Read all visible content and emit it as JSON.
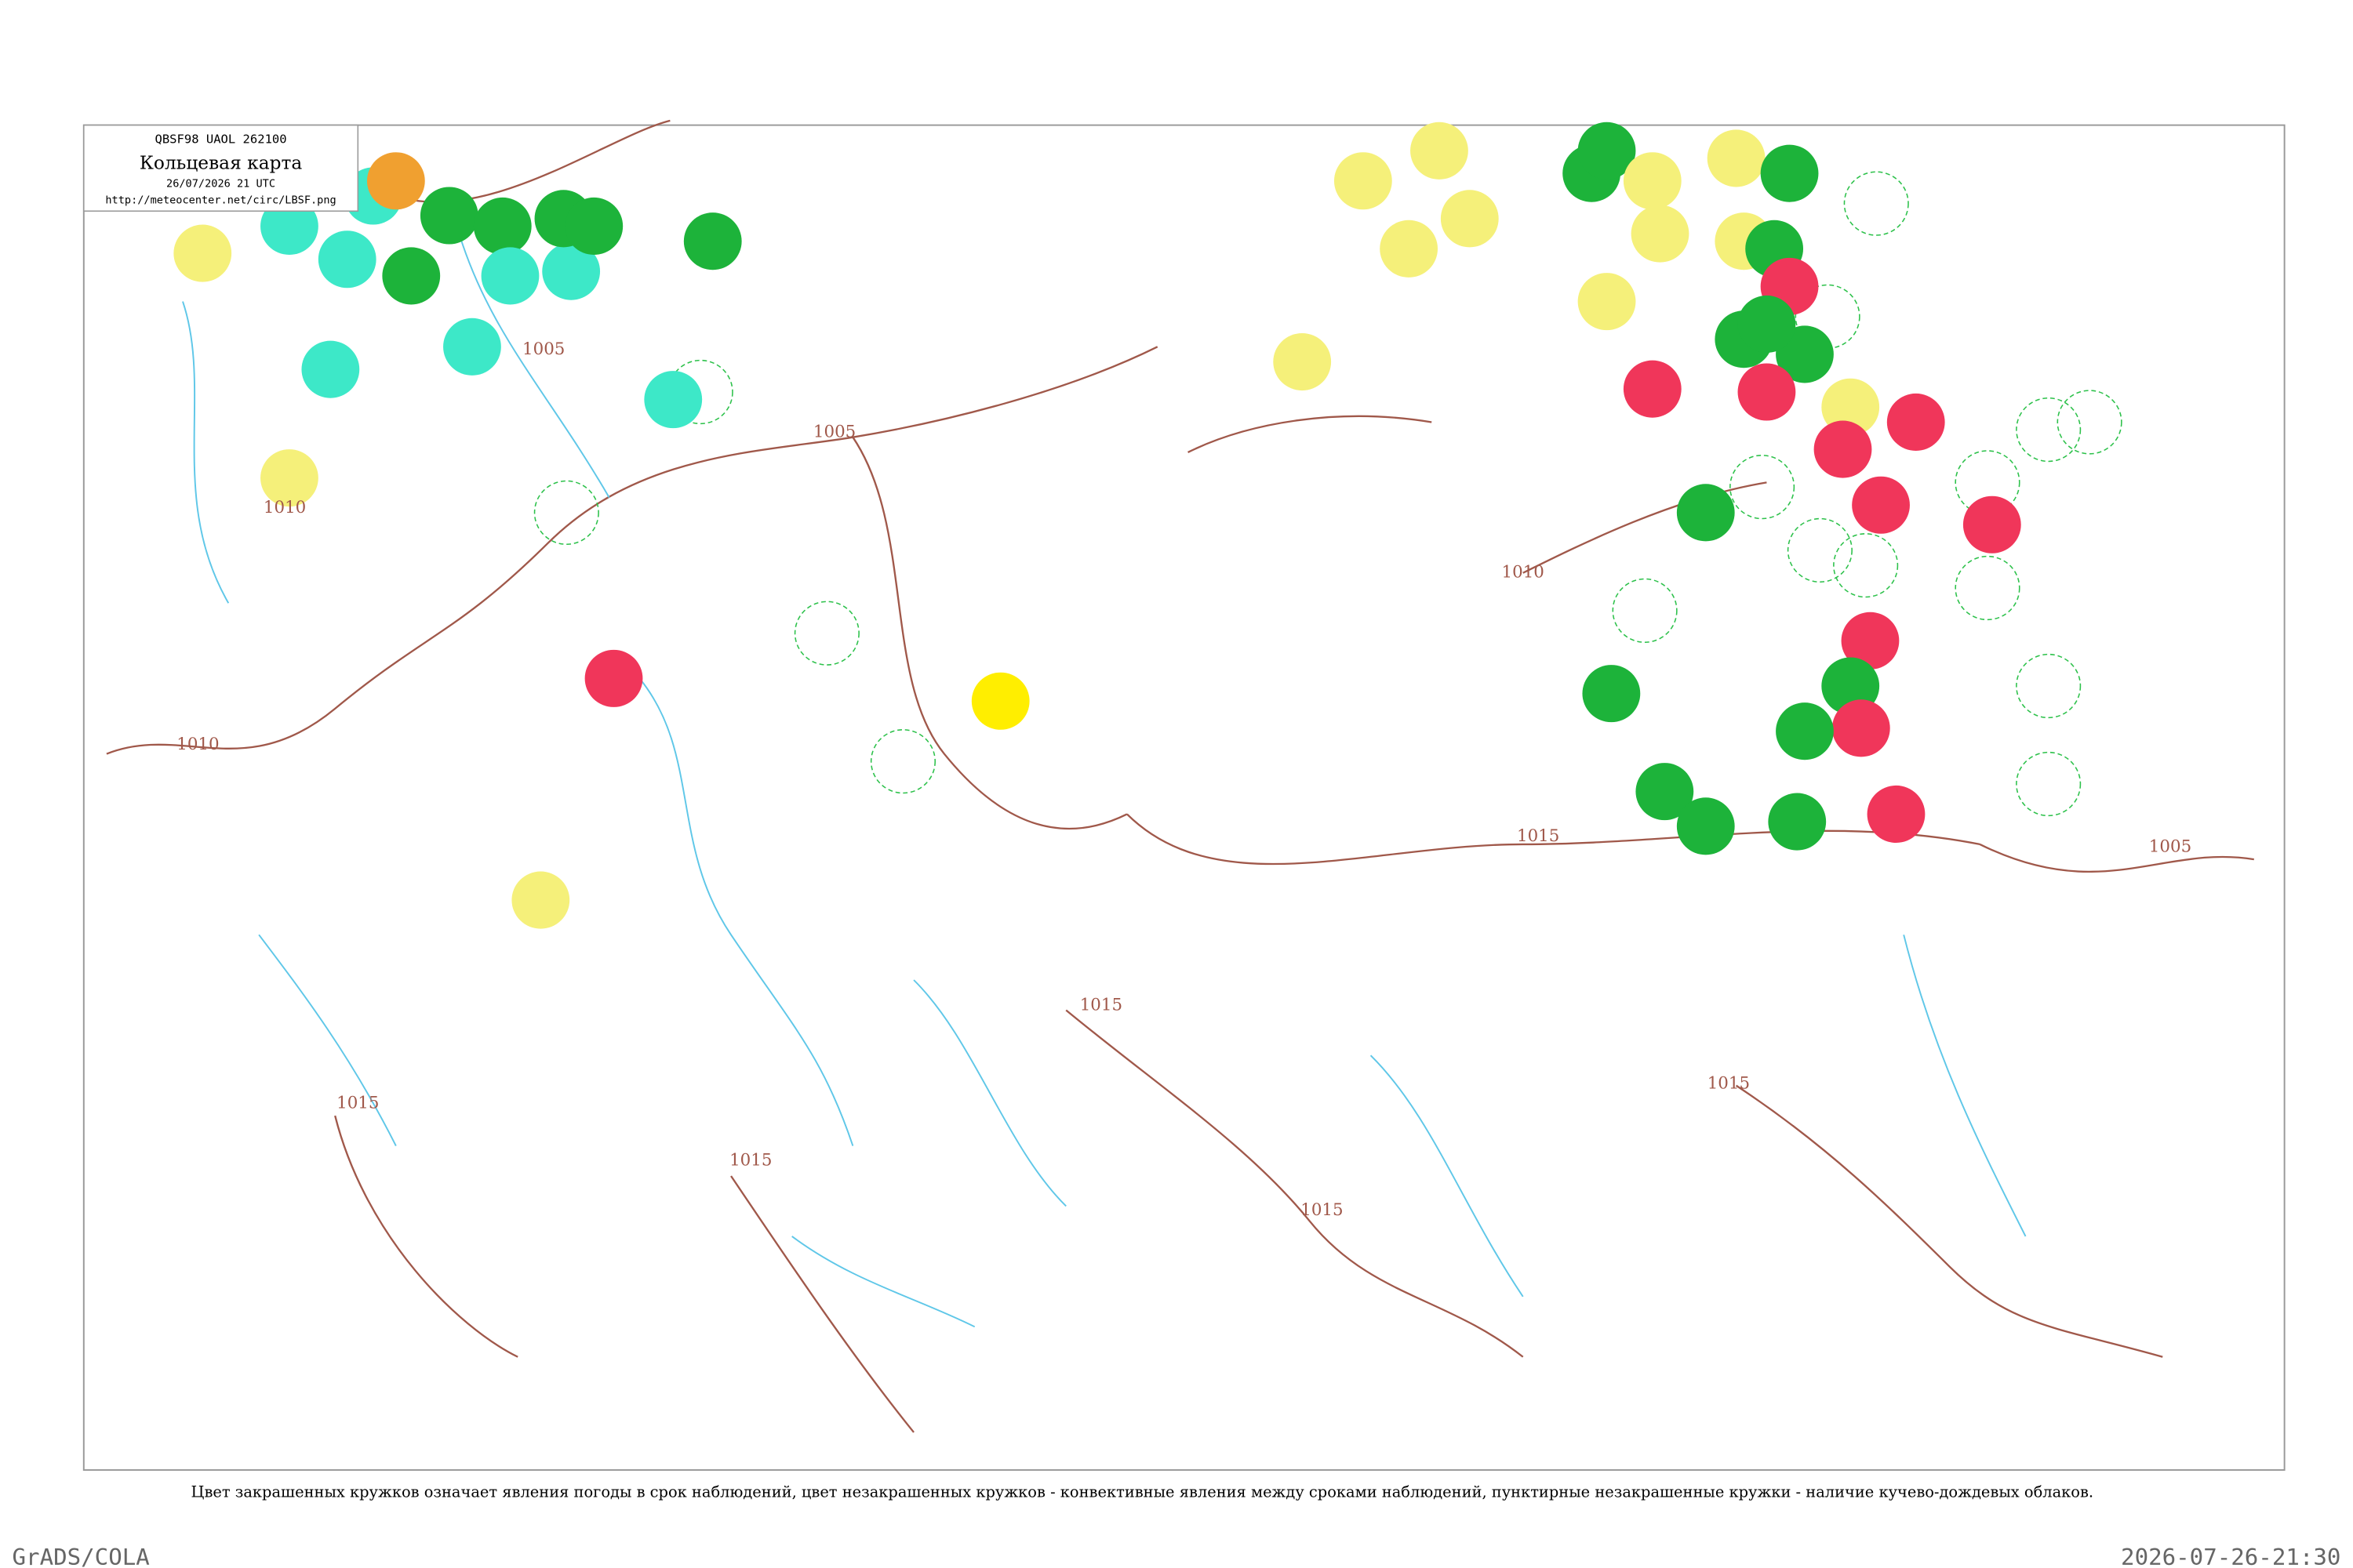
{
  "header": {
    "code": "QBSF98  UAOL  262100",
    "title": "Кольцевая карта",
    "date": "26/07/2026 21 UTC",
    "url": "http://meteocenter.net/circ/LBSF.png"
  },
  "isobar_labels": [
    "1005",
    "1010",
    "1015",
    "1015",
    "1015",
    "1015",
    "1015",
    "1005",
    "1010",
    "1010",
    "1015",
    "1005"
  ],
  "caption": "Цвет закрашенных кружков означает явления погоды в срок наблюдений, цвет незакрашенных кружков - конвективные явления между сроками наблюдений, пунктирные незакрашенные кружки - наличие кучево-дождевых облаков.",
  "footer": {
    "left": "GrADS/COLA",
    "right": "2026-07-26-21:30"
  }
}
